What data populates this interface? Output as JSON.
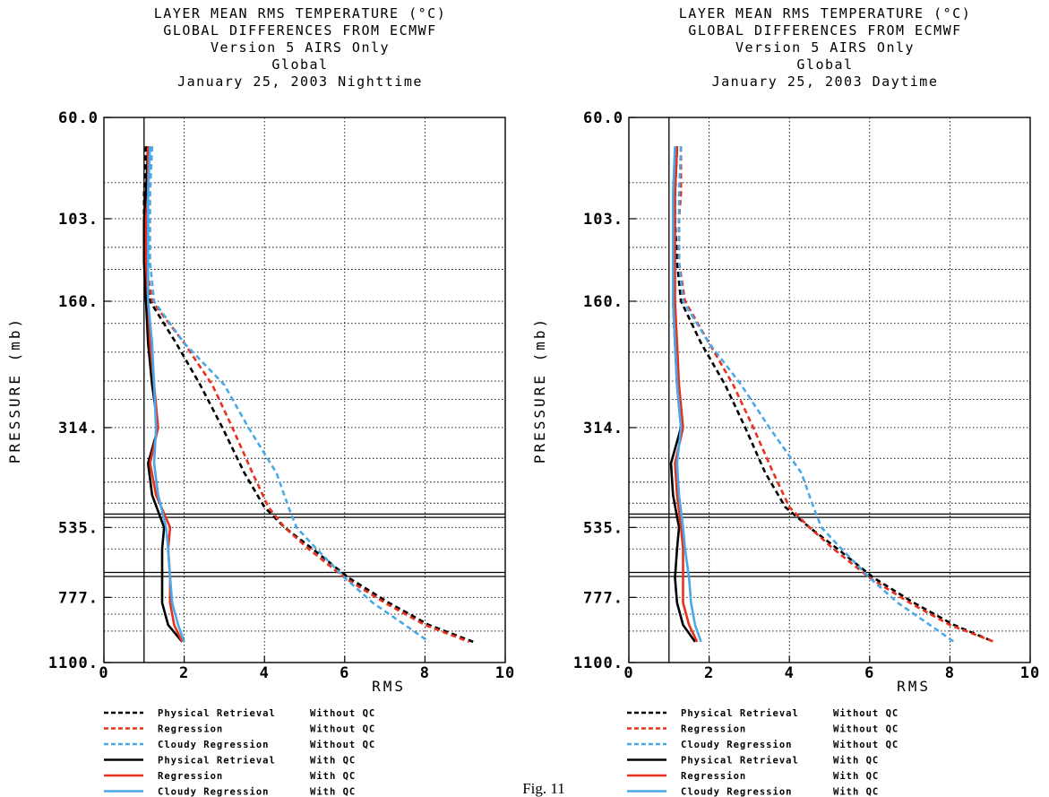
{
  "caption": "Fig. 11",
  "legend": [
    {
      "name": "Physical Retrieval",
      "qc": "Without QC",
      "color": "#000000",
      "dashed": true
    },
    {
      "name": "Regression",
      "qc": "Without QC",
      "color": "#e8301c",
      "dashed": true
    },
    {
      "name": "Cloudy Regression",
      "qc": "Without QC",
      "color": "#4aa8e8",
      "dashed": true
    },
    {
      "name": "Physical Retrieval",
      "qc": "With QC",
      "color": "#000000",
      "dashed": false
    },
    {
      "name": "Regression",
      "qc": "With QC",
      "color": "#e8301c",
      "dashed": false
    },
    {
      "name": "Cloudy Regression",
      "qc": "With QC",
      "color": "#4aa8e8",
      "dashed": false
    }
  ],
  "chart_data": [
    {
      "type": "line",
      "title": [
        "LAYER MEAN RMS TEMPERATURE (°C)",
        "GLOBAL DIFFERENCES FROM ECMWF",
        "Version 5 AIRS Only",
        "Global",
        "January 25, 2003   Nighttime"
      ],
      "xlabel": "RMS",
      "ylabel": "PRESSURE (mb)",
      "xlim": [
        0,
        10
      ],
      "ylim": [
        60.0,
        1100.0
      ],
      "y_scale": "log",
      "xticks": [
        "0",
        "2",
        "4",
        "6",
        "8",
        "10"
      ],
      "yticks": [
        {
          "v": 60,
          "label": "60.0"
        },
        {
          "v": 103,
          "label": "103."
        },
        {
          "v": 160,
          "label": "160."
        },
        {
          "v": 314,
          "label": "314."
        },
        {
          "v": 535,
          "label": "535."
        },
        {
          "v": 777,
          "label": "777."
        },
        {
          "v": 1100,
          "label": "1100."
        }
      ],
      "minor_y": [
        85,
        120,
        135,
        180,
        210,
        245,
        270,
        370,
        420,
        470,
        600,
        680,
        850,
        930
      ],
      "ref_x": 1.0,
      "ref_pressures": [
        498,
        507,
        680,
        695
      ],
      "series": [
        {
          "name": "Physical Retrieval Without QC",
          "p": [
            70,
            90,
            103,
            130,
            160,
            200,
            250,
            314,
            400,
            480,
            535,
            600,
            700,
            800,
            900,
            985
          ],
          "values": [
            1.05,
            1.0,
            1.0,
            1.05,
            1.15,
            1.8,
            2.4,
            2.95,
            3.5,
            4.0,
            4.5,
            5.2,
            6.1,
            7.1,
            8.1,
            9.2
          ]
        },
        {
          "name": "Regression Without QC",
          "p": [
            70,
            90,
            103,
            130,
            160,
            200,
            250,
            314,
            400,
            480,
            535,
            600,
            700,
            800,
            900,
            985
          ],
          "values": [
            1.1,
            1.05,
            1.05,
            1.05,
            1.2,
            2.0,
            2.7,
            3.2,
            3.7,
            4.1,
            4.5,
            5.1,
            6.0,
            7.0,
            8.0,
            9.1
          ]
        },
        {
          "name": "Cloudy Regression Without QC",
          "p": [
            70,
            90,
            103,
            130,
            160,
            200,
            250,
            314,
            400,
            480,
            535,
            600,
            700,
            800,
            900,
            985
          ],
          "values": [
            1.2,
            1.15,
            1.15,
            1.15,
            1.25,
            2.0,
            3.0,
            3.6,
            4.3,
            4.6,
            4.8,
            5.3,
            6.0,
            6.7,
            7.5,
            8.1
          ]
        },
        {
          "name": "Physical Retrieval With QC",
          "p": [
            70,
            90,
            103,
            130,
            160,
            200,
            250,
            314,
            380,
            450,
            535,
            600,
            700,
            800,
            900,
            985
          ],
          "values": [
            1.1,
            1.05,
            1.0,
            1.0,
            1.05,
            1.1,
            1.2,
            1.35,
            1.1,
            1.2,
            1.5,
            1.45,
            1.45,
            1.45,
            1.6,
            1.95
          ]
        },
        {
          "name": "Regression With QC",
          "p": [
            70,
            90,
            103,
            130,
            160,
            200,
            250,
            314,
            380,
            450,
            535,
            600,
            700,
            800,
            900,
            985
          ],
          "values": [
            1.1,
            1.1,
            1.05,
            1.05,
            1.1,
            1.15,
            1.25,
            1.35,
            1.15,
            1.3,
            1.65,
            1.6,
            1.65,
            1.65,
            1.75,
            1.95
          ]
        },
        {
          "name": "Cloudy Regression With QC",
          "p": [
            70,
            90,
            103,
            130,
            160,
            200,
            250,
            314,
            380,
            450,
            535,
            600,
            700,
            800,
            900,
            985
          ],
          "values": [
            1.15,
            1.1,
            1.1,
            1.1,
            1.1,
            1.2,
            1.25,
            1.3,
            1.25,
            1.35,
            1.55,
            1.6,
            1.65,
            1.7,
            1.85,
            2.0
          ]
        }
      ]
    },
    {
      "type": "line",
      "title": [
        "LAYER MEAN RMS TEMPERATURE (°C)",
        "GLOBAL DIFFERENCES FROM ECMWF",
        "Version 5 AIRS Only",
        "Global",
        "January 25, 2003   Daytime"
      ],
      "xlabel": "RMS",
      "ylabel": "PRESSURE (mb)",
      "xlim": [
        0,
        10
      ],
      "ylim": [
        60.0,
        1100.0
      ],
      "y_scale": "log",
      "xticks": [
        "0",
        "2",
        "4",
        "6",
        "8",
        "10"
      ],
      "yticks": [
        {
          "v": 60,
          "label": "60.0"
        },
        {
          "v": 103,
          "label": "103."
        },
        {
          "v": 160,
          "label": "160."
        },
        {
          "v": 314,
          "label": "314."
        },
        {
          "v": 535,
          "label": "535."
        },
        {
          "v": 777,
          "label": "777."
        },
        {
          "v": 1100,
          "label": "1100."
        }
      ],
      "minor_y": [
        85,
        120,
        135,
        180,
        210,
        245,
        270,
        370,
        420,
        470,
        600,
        680,
        850,
        930
      ],
      "ref_x": 1.0,
      "ref_pressures": [
        498,
        507,
        680,
        695
      ],
      "series": [
        {
          "name": "Physical Retrieval Without QC",
          "p": [
            70,
            90,
            103,
            130,
            160,
            200,
            250,
            314,
            400,
            480,
            535,
            600,
            700,
            800,
            900,
            985
          ],
          "values": [
            1.2,
            1.15,
            1.15,
            1.2,
            1.3,
            1.8,
            2.4,
            2.9,
            3.4,
            3.9,
            4.5,
            5.2,
            6.1,
            7.1,
            8.1,
            9.1
          ]
        },
        {
          "name": "Regression Without QC",
          "p": [
            70,
            90,
            103,
            130,
            160,
            200,
            250,
            314,
            400,
            480,
            535,
            600,
            700,
            800,
            900,
            985
          ],
          "values": [
            1.3,
            1.3,
            1.25,
            1.25,
            1.4,
            2.0,
            2.6,
            3.1,
            3.6,
            4.0,
            4.5,
            5.1,
            6.0,
            7.0,
            8.0,
            9.1
          ]
        },
        {
          "name": "Cloudy Regression Without QC",
          "p": [
            70,
            90,
            103,
            130,
            160,
            200,
            250,
            314,
            400,
            480,
            535,
            600,
            700,
            800,
            900,
            985
          ],
          "values": [
            1.3,
            1.25,
            1.25,
            1.25,
            1.35,
            2.0,
            2.8,
            3.5,
            4.3,
            4.6,
            4.8,
            5.3,
            6.0,
            6.7,
            7.5,
            8.1
          ]
        },
        {
          "name": "Physical Retrieval With QC",
          "p": [
            70,
            90,
            103,
            130,
            160,
            200,
            250,
            314,
            380,
            450,
            535,
            600,
            700,
            800,
            900,
            985
          ],
          "values": [
            1.2,
            1.15,
            1.1,
            1.1,
            1.1,
            1.15,
            1.2,
            1.3,
            1.05,
            1.1,
            1.25,
            1.2,
            1.15,
            1.2,
            1.35,
            1.65
          ]
        },
        {
          "name": "Regression With QC",
          "p": [
            70,
            90,
            103,
            130,
            160,
            200,
            250,
            314,
            380,
            450,
            535,
            600,
            700,
            800,
            900,
            985
          ],
          "values": [
            1.2,
            1.15,
            1.15,
            1.15,
            1.15,
            1.2,
            1.25,
            1.35,
            1.15,
            1.2,
            1.3,
            1.35,
            1.35,
            1.35,
            1.5,
            1.7
          ]
        },
        {
          "name": "Cloudy Regression With QC",
          "p": [
            70,
            90,
            103,
            130,
            160,
            200,
            250,
            314,
            380,
            450,
            535,
            600,
            700,
            800,
            900,
            985
          ],
          "values": [
            1.15,
            1.1,
            1.1,
            1.1,
            1.1,
            1.15,
            1.2,
            1.3,
            1.2,
            1.25,
            1.35,
            1.4,
            1.5,
            1.55,
            1.65,
            1.8
          ]
        }
      ]
    }
  ]
}
